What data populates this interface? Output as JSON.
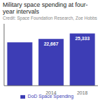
{
  "chart_data": {
    "type": "bar",
    "title": "Military space spending at four-year intervals",
    "subtitle": "Credit: Space Foundation Research, Zoe Hobbs",
    "categories": [
      null,
      "2014",
      "2018"
    ],
    "series": [
      {
        "name": "DoD Space Spending",
        "color": "#3d3db5",
        "values": [
          21000,
          22667,
          25333
        ],
        "value_labels": [
          null,
          "22,667",
          "25,333"
        ]
      }
    ],
    "data_labels": true,
    "ylim": [
      0,
      30000
    ],
    "tick_labels": "x",
    "legend": "bottom",
    "grid": false
  }
}
